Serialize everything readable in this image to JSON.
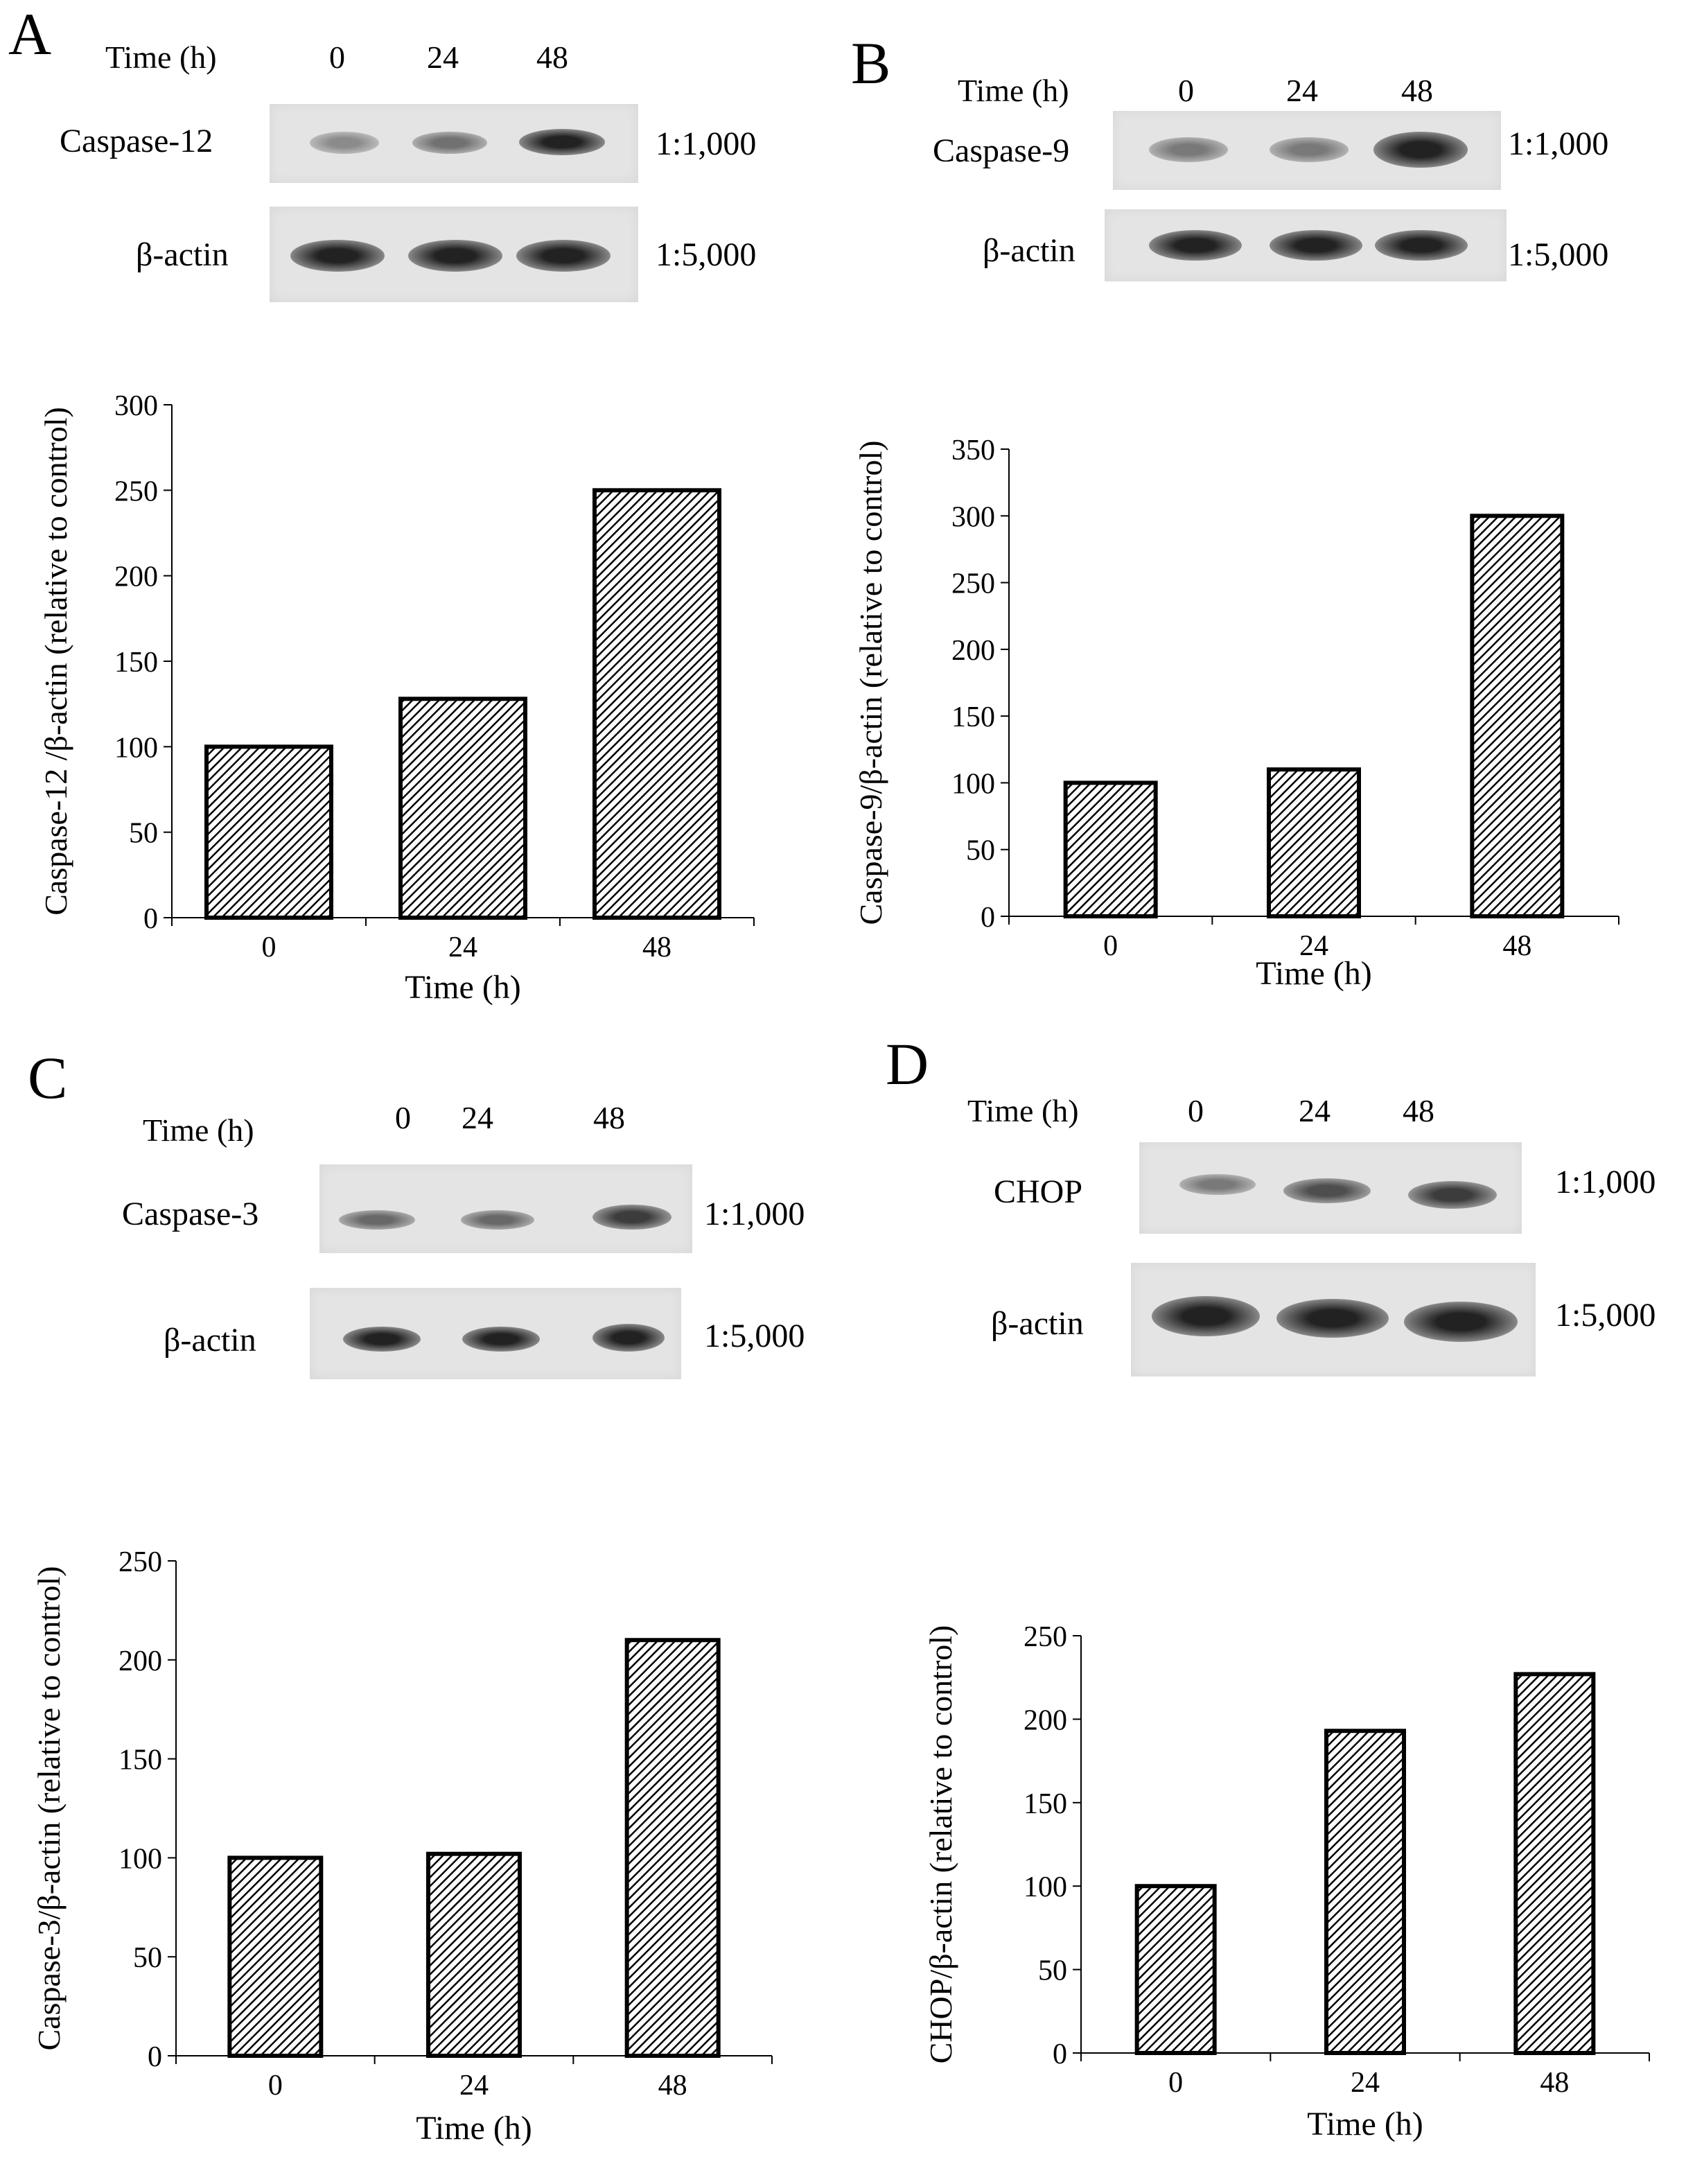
{
  "panels": [
    {
      "letter": "A",
      "blot": {
        "time_header": "Time (h)",
        "lanes": [
          "0",
          "24",
          "48"
        ],
        "rows": [
          {
            "label": "Caspase-12",
            "dilution": "1:1,000",
            "band_intensity": [
              0.35,
              0.5,
              0.95
            ]
          },
          {
            "label": "β-actin",
            "dilution": "1:5,000",
            "band_intensity": [
              0.95,
              0.95,
              0.95
            ]
          }
        ]
      }
    },
    {
      "letter": "B",
      "blot": {
        "time_header": "Time (h)",
        "lanes": [
          "0",
          "24",
          "48"
        ],
        "rows": [
          {
            "label": "Caspase-9",
            "dilution": "1:1,000",
            "band_intensity": [
              0.45,
              0.45,
              0.95
            ]
          },
          {
            "label": "β-actin",
            "dilution": "1:5,000",
            "band_intensity": [
              0.95,
              0.95,
              0.95
            ]
          }
        ]
      }
    },
    {
      "letter": "C",
      "blot": {
        "time_header": "Time (h)",
        "lanes": [
          "0",
          "24",
          "48"
        ],
        "rows": [
          {
            "label": "Caspase-3",
            "dilution": "1:1,000",
            "band_intensity": [
              0.55,
              0.55,
              0.8
            ]
          },
          {
            "label": "β-actin",
            "dilution": "1:5,000",
            "band_intensity": [
              0.95,
              0.95,
              0.95
            ]
          }
        ]
      }
    },
    {
      "letter": "D",
      "blot": {
        "time_header": "Time (h)",
        "lanes": [
          "0",
          "24",
          "48"
        ],
        "rows": [
          {
            "label": "CHOP",
            "dilution": "1:1,000",
            "band_intensity": [
              0.45,
              0.7,
              0.8
            ]
          },
          {
            "label": "β-actin",
            "dilution": "1:5,000",
            "band_intensity": [
              0.95,
              0.95,
              0.95
            ]
          }
        ]
      }
    }
  ],
  "chart_data": [
    {
      "type": "bar",
      "categories": [
        "0",
        "24",
        "48"
      ],
      "values": [
        100,
        128,
        250
      ],
      "xlabel": "Time (h)",
      "ylabel": "Caspase-12 /β-actin (relative to control)",
      "ylim": [
        0,
        300
      ],
      "yticks": [
        0,
        50,
        100,
        150,
        200,
        250,
        300
      ],
      "bar_fill": "hatched diagonal"
    },
    {
      "type": "bar",
      "categories": [
        "0",
        "24",
        "48"
      ],
      "values": [
        100,
        110,
        300
      ],
      "xlabel": "Time (h)",
      "ylabel": "Caspase-9/β-actin (relative to control)",
      "ylim": [
        0,
        350
      ],
      "yticks": [
        0,
        50,
        100,
        150,
        200,
        250,
        300,
        350
      ],
      "bar_fill": "hatched diagonal"
    },
    {
      "type": "bar",
      "categories": [
        "0",
        "24",
        "48"
      ],
      "values": [
        100,
        102,
        210
      ],
      "xlabel": "Time (h)",
      "ylabel": "Caspase-3/β-actin (relative to control)",
      "ylim": [
        0,
        250
      ],
      "yticks": [
        0,
        50,
        100,
        150,
        200,
        250
      ],
      "bar_fill": "hatched diagonal"
    },
    {
      "type": "bar",
      "categories": [
        "0",
        "24",
        "48"
      ],
      "values": [
        100,
        193,
        227
      ],
      "xlabel": "Time (h)",
      "ylabel": "CHOP/β-actin (relative to control)",
      "ylim": [
        0,
        250
      ],
      "yticks": [
        0,
        50,
        100,
        150,
        200,
        250
      ],
      "bar_fill": "hatched diagonal"
    }
  ]
}
